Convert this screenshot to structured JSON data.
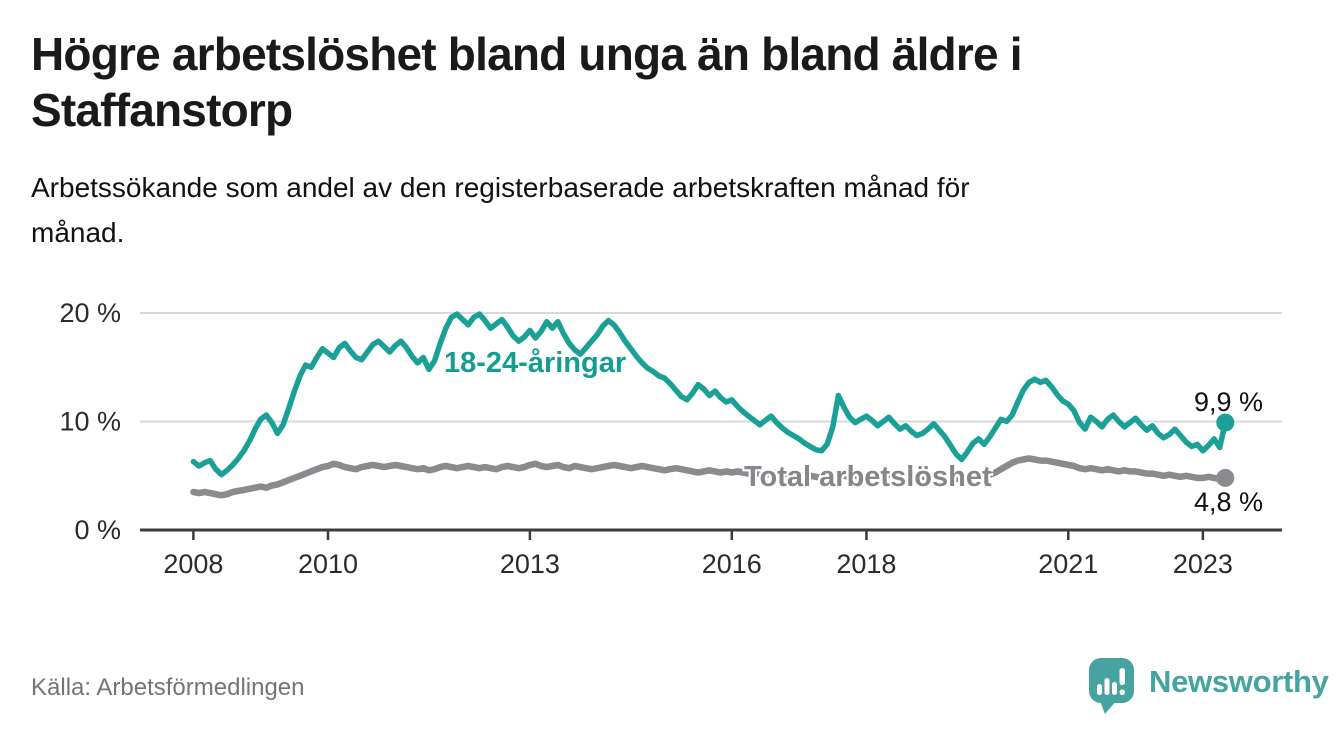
{
  "header": {
    "title": "Högre arbetslöshet bland unga än bland äldre i\nStaffanstorp",
    "subtitle": "Arbetssökande som andel av den registerbaserade arbetskraften månad för\nmånad."
  },
  "chart_data": {
    "type": "line",
    "unit": "%",
    "x_start_year": 2008,
    "x_interval": "monthly",
    "x_end_label": "2023",
    "ylim": [
      0,
      21
    ],
    "grid": "horizontal",
    "legend_position": "inline-labels",
    "y_ticks": [
      {
        "value": 0,
        "label": "0 %"
      },
      {
        "value": 10,
        "label": "10 %"
      },
      {
        "value": 20,
        "label": "20 %"
      }
    ],
    "x_ticks": [
      {
        "year": 2008,
        "label": "2008"
      },
      {
        "year": 2010,
        "label": "2010"
      },
      {
        "year": 2013,
        "label": "2013"
      },
      {
        "year": 2016,
        "label": "2016"
      },
      {
        "year": 2018,
        "label": "2018"
      },
      {
        "year": 2021,
        "label": "2021"
      },
      {
        "year": 2023,
        "label": "2023"
      }
    ],
    "series": [
      {
        "name": "18-24-åringar",
        "color": "#1aa096",
        "end_label": "9,9 %",
        "end_value": 9.9,
        "values": [
          6.3,
          5.9,
          6.2,
          6.4,
          5.6,
          5.1,
          5.5,
          6.0,
          6.6,
          7.3,
          8.2,
          9.3,
          10.2,
          10.6,
          9.9,
          8.9,
          9.7,
          11.2,
          12.8,
          14.2,
          15.2,
          15.0,
          15.9,
          16.7,
          16.3,
          15.9,
          16.8,
          17.2,
          16.5,
          15.9,
          15.7,
          16.4,
          17.1,
          17.4,
          16.9,
          16.4,
          17.0,
          17.4,
          16.8,
          16.0,
          15.4,
          15.9,
          14.8,
          15.6,
          17.2,
          18.6,
          19.6,
          19.9,
          19.4,
          18.9,
          19.6,
          19.9,
          19.3,
          18.6,
          19.0,
          19.4,
          18.7,
          17.9,
          17.4,
          17.8,
          18.4,
          17.7,
          18.3,
          19.2,
          18.6,
          19.2,
          18.1,
          17.2,
          16.6,
          16.2,
          16.8,
          17.4,
          18.0,
          18.8,
          19.3,
          18.9,
          18.2,
          17.4,
          16.7,
          16.0,
          15.4,
          14.9,
          14.6,
          14.2,
          14.0,
          13.5,
          12.9,
          12.3,
          12.0,
          12.6,
          13.4,
          13.0,
          12.4,
          12.8,
          12.2,
          11.8,
          12.0,
          11.4,
          10.9,
          10.5,
          10.1,
          9.7,
          10.1,
          10.5,
          9.9,
          9.4,
          9.0,
          8.7,
          8.4,
          8.0,
          7.7,
          7.4,
          7.3,
          7.9,
          9.5,
          12.4,
          11.3,
          10.4,
          9.9,
          10.2,
          10.5,
          10.1,
          9.6,
          10.0,
          10.4,
          9.8,
          9.3,
          9.6,
          9.1,
          8.7,
          8.9,
          9.3,
          9.8,
          9.2,
          8.6,
          7.8,
          7.0,
          6.5,
          7.2,
          8.0,
          8.4,
          7.9,
          8.6,
          9.4,
          10.2,
          10.0,
          10.6,
          11.8,
          12.9,
          13.6,
          13.9,
          13.6,
          13.8,
          13.2,
          12.5,
          11.9,
          11.6,
          11.0,
          9.9,
          9.3,
          10.4,
          10.0,
          9.5,
          10.2,
          10.6,
          10.0,
          9.5,
          9.9,
          10.3,
          9.7,
          9.2,
          9.6,
          8.9,
          8.5,
          8.8,
          9.3,
          8.7,
          8.1,
          7.7,
          7.9,
          7.3,
          7.8,
          8.4,
          7.6,
          9.9
        ]
      },
      {
        "name": "Total arbetslöshet",
        "color": "#8a8a8f",
        "end_label": "4,8 %",
        "end_value": 4.8,
        "values": [
          3.5,
          3.4,
          3.5,
          3.4,
          3.3,
          3.2,
          3.3,
          3.5,
          3.6,
          3.7,
          3.8,
          3.9,
          4.0,
          3.9,
          4.1,
          4.2,
          4.4,
          4.6,
          4.8,
          5.0,
          5.2,
          5.4,
          5.6,
          5.8,
          5.9,
          6.1,
          6.0,
          5.8,
          5.7,
          5.6,
          5.8,
          5.9,
          6.0,
          5.9,
          5.8,
          5.9,
          6.0,
          5.9,
          5.8,
          5.7,
          5.6,
          5.7,
          5.5,
          5.6,
          5.8,
          5.9,
          5.8,
          5.7,
          5.8,
          5.9,
          5.8,
          5.7,
          5.8,
          5.7,
          5.6,
          5.8,
          5.9,
          5.8,
          5.7,
          5.8,
          6.0,
          6.1,
          5.9,
          5.8,
          5.9,
          6.0,
          5.8,
          5.7,
          5.9,
          5.8,
          5.7,
          5.6,
          5.7,
          5.8,
          5.9,
          6.0,
          5.9,
          5.8,
          5.7,
          5.8,
          5.9,
          5.8,
          5.7,
          5.6,
          5.5,
          5.6,
          5.7,
          5.6,
          5.5,
          5.4,
          5.3,
          5.4,
          5.5,
          5.4,
          5.3,
          5.4,
          5.3,
          5.4,
          5.3,
          5.2,
          5.3,
          5.2,
          5.1,
          5.2,
          5.3,
          5.2,
          5.1,
          5.0,
          5.0,
          4.9,
          5.0,
          4.9,
          4.8,
          4.9,
          5.0,
          5.1,
          5.0,
          4.9,
          5.0,
          5.1,
          5.1,
          5.0,
          4.9,
          5.0,
          5.1,
          5.0,
          4.9,
          4.8,
          4.9,
          4.8,
          4.9,
          5.0,
          4.9,
          4.8,
          4.7,
          4.6,
          4.7,
          4.8,
          4.9,
          5.0,
          4.9,
          5.0,
          5.1,
          5.3,
          5.6,
          5.9,
          6.2,
          6.4,
          6.5,
          6.6,
          6.5,
          6.4,
          6.4,
          6.3,
          6.2,
          6.1,
          6.0,
          5.9,
          5.7,
          5.6,
          5.7,
          5.6,
          5.5,
          5.6,
          5.5,
          5.4,
          5.5,
          5.4,
          5.4,
          5.3,
          5.2,
          5.2,
          5.1,
          5.0,
          5.1,
          5.0,
          4.9,
          5.0,
          4.9,
          4.8,
          4.8,
          4.9,
          4.8,
          4.7,
          4.8
        ]
      }
    ]
  },
  "footer": {
    "source": "Källa: Arbetsförmedlingen",
    "brand": "Newsworthy",
    "brand_color": "#46a3a1"
  },
  "colors": {
    "youth_line": "#1aa096",
    "total_line": "#8a8a8f",
    "axis": "#3c3c3c",
    "gridline": "#d9d9d9",
    "title_text": "#1a1a1a",
    "source_text": "#757575"
  }
}
